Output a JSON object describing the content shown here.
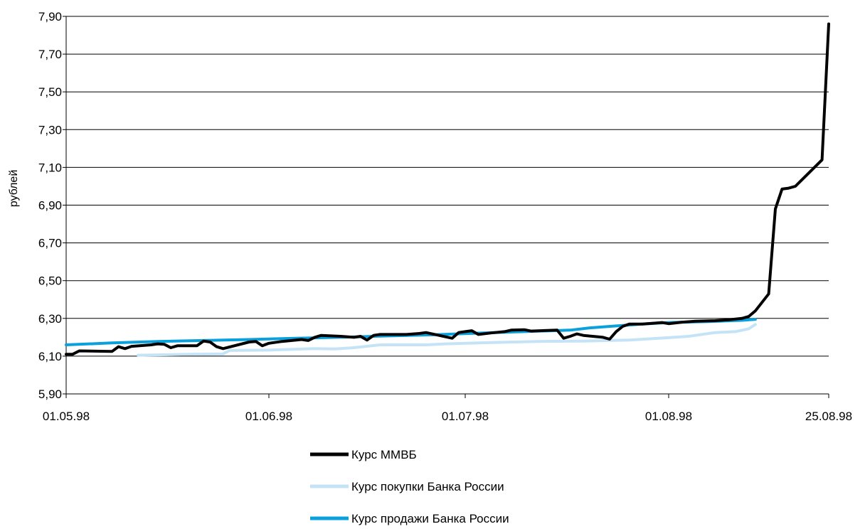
{
  "chart_data": {
    "type": "line",
    "ylabel": "рублей",
    "xlabel": "",
    "ylim": [
      5.9,
      7.9
    ],
    "yticks": [
      "7,90",
      "7,70",
      "7,50",
      "7,30",
      "7,10",
      "6,90",
      "6,70",
      "6,50",
      "6,30",
      "6,10",
      "5,90"
    ],
    "x_ticks": [
      {
        "label": "01.05.98",
        "date": "1998-05-01"
      },
      {
        "label": "01.06.98",
        "date": "1998-06-01"
      },
      {
        "label": "01.07.98",
        "date": "1998-07-01"
      },
      {
        "label": "01.08.98",
        "date": "1998-08-01"
      },
      {
        "label": "25.08.98",
        "date": "1998-08-25"
      }
    ],
    "grid": true,
    "legend_position": "bottom",
    "series": [
      {
        "name": "Курс покупки Банка России",
        "color": "#c5e3f6",
        "points": [
          [
            "1998-05-12",
            6.105
          ],
          [
            "1998-05-20",
            6.11
          ],
          [
            "1998-05-25",
            6.112
          ],
          [
            "1998-05-26",
            6.13
          ],
          [
            "1998-06-01",
            6.132
          ],
          [
            "1998-06-08",
            6.14
          ],
          [
            "1998-06-11",
            6.138
          ],
          [
            "1998-06-14",
            6.145
          ],
          [
            "1998-06-18",
            6.16
          ],
          [
            "1998-06-25",
            6.16
          ],
          [
            "1998-06-28",
            6.165
          ],
          [
            "1998-07-05",
            6.172
          ],
          [
            "1998-07-12",
            6.178
          ],
          [
            "1998-07-19",
            6.18
          ],
          [
            "1998-07-26",
            6.185
          ],
          [
            "1998-08-01",
            6.198
          ],
          [
            "1998-08-04",
            6.205
          ],
          [
            "1998-08-08",
            6.225
          ],
          [
            "1998-08-11",
            6.23
          ],
          [
            "1998-08-13",
            6.245
          ],
          [
            "1998-08-14",
            6.268
          ]
        ]
      },
      {
        "name": "Курс продажи Банка России",
        "color": "#0aa0dc",
        "points": [
          [
            "1998-05-01",
            6.16
          ],
          [
            "1998-05-08",
            6.17
          ],
          [
            "1998-05-15",
            6.178
          ],
          [
            "1998-05-22",
            6.183
          ],
          [
            "1998-05-29",
            6.188
          ],
          [
            "1998-06-05",
            6.195
          ],
          [
            "1998-06-12",
            6.2
          ],
          [
            "1998-06-19",
            6.207
          ],
          [
            "1998-06-26",
            6.213
          ],
          [
            "1998-07-03",
            6.222
          ],
          [
            "1998-07-10",
            6.23
          ],
          [
            "1998-07-17",
            6.238
          ],
          [
            "1998-07-20",
            6.25
          ],
          [
            "1998-07-24",
            6.26
          ],
          [
            "1998-07-28",
            6.27
          ],
          [
            "1998-08-01",
            6.278
          ],
          [
            "1998-08-07",
            6.283
          ],
          [
            "1998-08-12",
            6.29
          ],
          [
            "1998-08-14",
            6.295
          ]
        ]
      },
      {
        "name": "Курс ММВБ",
        "color": "#000000",
        "points": [
          [
            "1998-05-01",
            6.11
          ],
          [
            "1998-05-02",
            6.11
          ],
          [
            "1998-05-03",
            6.128
          ],
          [
            "1998-05-08",
            6.125
          ],
          [
            "1998-05-09",
            6.15
          ],
          [
            "1998-05-10",
            6.14
          ],
          [
            "1998-05-11",
            6.152
          ],
          [
            "1998-05-14",
            6.16
          ],
          [
            "1998-05-15",
            6.165
          ],
          [
            "1998-05-16",
            6.163
          ],
          [
            "1998-05-17",
            6.145
          ],
          [
            "1998-05-18",
            6.155
          ],
          [
            "1998-05-21",
            6.155
          ],
          [
            "1998-05-22",
            6.18
          ],
          [
            "1998-05-23",
            6.175
          ],
          [
            "1998-05-24",
            6.15
          ],
          [
            "1998-05-25",
            6.14
          ],
          [
            "1998-05-29",
            6.175
          ],
          [
            "1998-05-30",
            6.178
          ],
          [
            "1998-05-31",
            6.155
          ],
          [
            "1998-06-01",
            6.168
          ],
          [
            "1998-06-03",
            6.178
          ],
          [
            "1998-06-06",
            6.188
          ],
          [
            "1998-06-07",
            6.183
          ],
          [
            "1998-06-08",
            6.2
          ],
          [
            "1998-06-09",
            6.21
          ],
          [
            "1998-06-12",
            6.205
          ],
          [
            "1998-06-14",
            6.2
          ],
          [
            "1998-06-15",
            6.205
          ],
          [
            "1998-06-16",
            6.185
          ],
          [
            "1998-06-17",
            6.21
          ],
          [
            "1998-06-18",
            6.215
          ],
          [
            "1998-06-22",
            6.215
          ],
          [
            "1998-06-24",
            6.22
          ],
          [
            "1998-06-25",
            6.225
          ],
          [
            "1998-06-29",
            6.195
          ],
          [
            "1998-06-30",
            6.225
          ],
          [
            "1998-07-01",
            6.23
          ],
          [
            "1998-07-02",
            6.235
          ],
          [
            "1998-07-03",
            6.215
          ],
          [
            "1998-07-05",
            6.223
          ],
          [
            "1998-07-07",
            6.23
          ],
          [
            "1998-07-08",
            6.238
          ],
          [
            "1998-07-10",
            6.24
          ],
          [
            "1998-07-11",
            6.233
          ],
          [
            "1998-07-15",
            6.238
          ],
          [
            "1998-07-16",
            6.195
          ],
          [
            "1998-07-17",
            6.205
          ],
          [
            "1998-07-18",
            6.218
          ],
          [
            "1998-07-19",
            6.21
          ],
          [
            "1998-07-22",
            6.2
          ],
          [
            "1998-07-23",
            6.19
          ],
          [
            "1998-07-24",
            6.23
          ],
          [
            "1998-07-25",
            6.258
          ],
          [
            "1998-07-26",
            6.27
          ],
          [
            "1998-07-28",
            6.27
          ],
          [
            "1998-07-30",
            6.275
          ],
          [
            "1998-07-31",
            6.278
          ],
          [
            "1998-08-01",
            6.272
          ],
          [
            "1998-08-03",
            6.28
          ],
          [
            "1998-08-05",
            6.285
          ],
          [
            "1998-08-08",
            6.288
          ],
          [
            "1998-08-10",
            6.293
          ],
          [
            "1998-08-12",
            6.3
          ],
          [
            "1998-08-13",
            6.31
          ],
          [
            "1998-08-14",
            6.34
          ],
          [
            "1998-08-16",
            6.43
          ],
          [
            "1998-08-17",
            6.88
          ],
          [
            "1998-08-18",
            6.985
          ],
          [
            "1998-08-19",
            6.99
          ],
          [
            "1998-08-20",
            7.0
          ],
          [
            "1998-08-24",
            7.14
          ],
          [
            "1998-08-25",
            7.86
          ]
        ]
      }
    ],
    "legend": [
      {
        "label": "Курс ММВБ",
        "color": "#000000"
      },
      {
        "label": "Курс покупки Банка России",
        "color": "#c5e3f6"
      },
      {
        "label": "Курс продажи Банка России",
        "color": "#0aa0dc"
      }
    ]
  }
}
